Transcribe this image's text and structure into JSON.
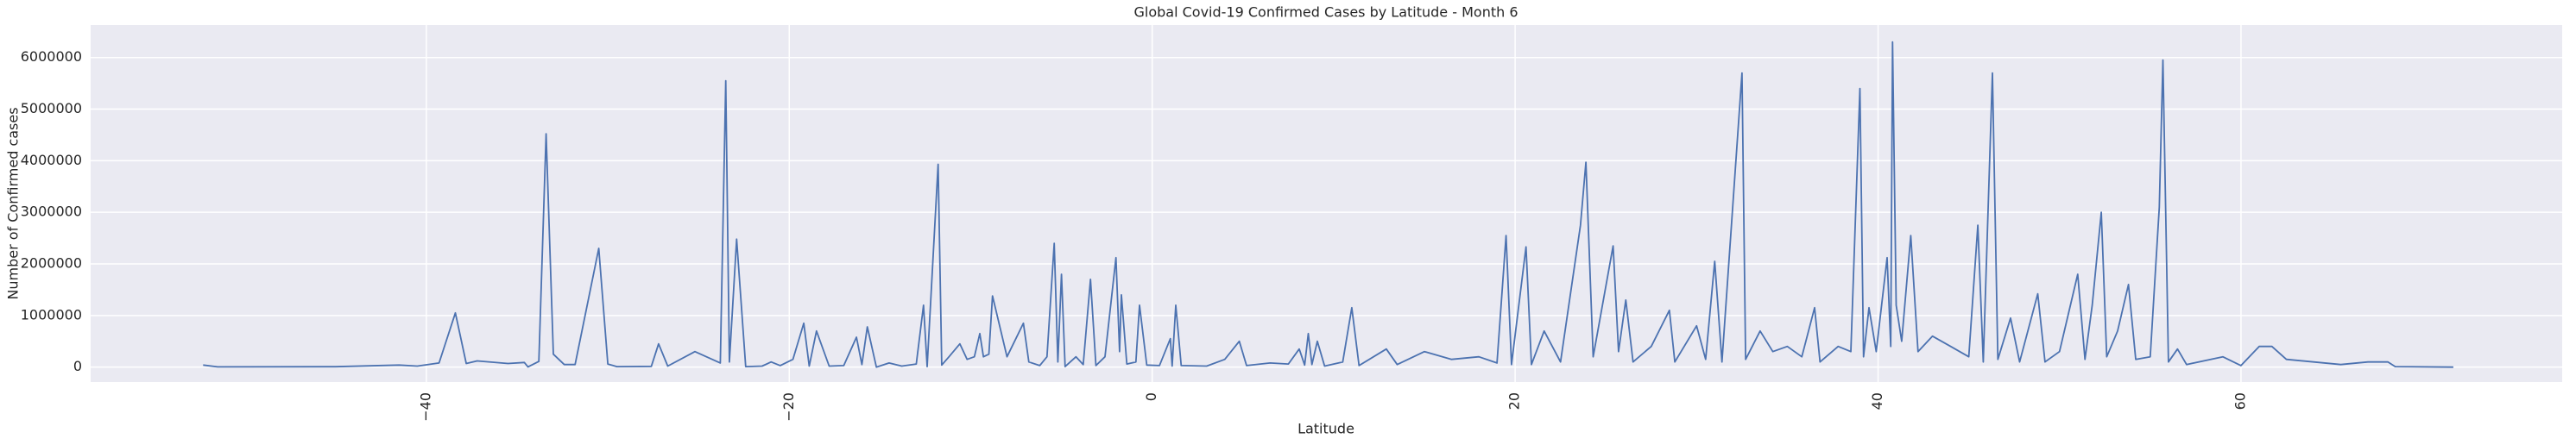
{
  "chart_data": {
    "type": "line",
    "title": "Global Covid-19 Confirmed Cases by Latitude - Month 6",
    "xlabel": "Latitude",
    "ylabel": "Number of Confirmed cases",
    "color": "#4c72b0",
    "grid": true,
    "xlim": [
      -58.5,
      77.7
    ],
    "ylim": [
      -290000,
      6630000
    ],
    "xticks": [
      {
        "value": -40,
        "label": "−40"
      },
      {
        "value": -20,
        "label": "−20"
      },
      0,
      20,
      40,
      60
    ],
    "yticks": [
      0,
      1000000,
      2000000,
      3000000,
      4000000,
      5000000,
      6000000
    ],
    "x": [
      -52.3,
      -51.5,
      -45,
      -41.5,
      -40.5,
      -39.3,
      -38.4,
      -37.8,
      -37.2,
      -35.5,
      -34.6,
      -34.4,
      -33.8,
      -33.4,
      -33.0,
      -32.4,
      -31.8,
      -30.5,
      -30.0,
      -29.5,
      -27.6,
      -27.2,
      -26.7,
      -25.2,
      -23.8,
      -23.5,
      -23.3,
      -22.9,
      -22.4,
      -21.5,
      -21.0,
      -20.5,
      -19.8,
      -19.2,
      -18.9,
      -18.5,
      -17.8,
      -17.0,
      -16.3,
      -16.0,
      -15.7,
      -15.2,
      -14.5,
      -13.8,
      -13.0,
      -12.6,
      -12.4,
      -11.8,
      -11.6,
      -11.2,
      -10.6,
      -10.2,
      -9.8,
      -9.5,
      -9.3,
      -9.0,
      -8.8,
      -8.0,
      -7.1,
      -6.8,
      -6.2,
      -5.8,
      -5.4,
      -5.2,
      -5.0,
      -4.8,
      -4.2,
      -3.8,
      -3.4,
      -3.1,
      -2.6,
      -2.0,
      -1.8,
      -1.7,
      -1.4,
      -0.9,
      -0.7,
      -0.3,
      0.4,
      1.0,
      1.1,
      1.3,
      1.6,
      3.0,
      4.0,
      4.8,
      5.2,
      6.5,
      7.5,
      8.1,
      8.4,
      8.6,
      8.8,
      9.1,
      9.5,
      10.5,
      11.0,
      11.4,
      12.9,
      13.5,
      15.0,
      16.5,
      18.0,
      19.0,
      19.5,
      19.8,
      20.6,
      20.9,
      21.6,
      22.5,
      23.6,
      23.9,
      24.3,
      25.4,
      25.7,
      26.1,
      26.5,
      27.5,
      28.5,
      28.8,
      30.0,
      30.5,
      31.0,
      31.4,
      32.5,
      32.7,
      33.5,
      34.2,
      35.0,
      35.8,
      36.5,
      36.8,
      37.8,
      38.5,
      39.0,
      39.2,
      39.5,
      39.9,
      40.5,
      40.7,
      40.8,
      41.0,
      41.3,
      41.8,
      42.2,
      43.0,
      44.0,
      45.0,
      45.5,
      45.8,
      46.3,
      46.6,
      47.3,
      47.8,
      48.8,
      49.2,
      50.0,
      51.0,
      51.4,
      51.8,
      52.3,
      52.6,
      53.2,
      53.8,
      54.2,
      55.0,
      55.5,
      55.7,
      56.0,
      56.5,
      57.0,
      59.0,
      60.0,
      61.0,
      61.7,
      62.5,
      64.0,
      65.5,
      67.0,
      68.1,
      68.5,
      71.7
    ],
    "values": [
      40000,
      5000,
      8000,
      40000,
      20000,
      80000,
      1050000,
      70000,
      120000,
      70000,
      90000,
      5000,
      110000,
      4520000,
      250000,
      50000,
      50000,
      2300000,
      60000,
      10000,
      15000,
      450000,
      20000,
      300000,
      80000,
      5550000,
      100000,
      2480000,
      10000,
      20000,
      100000,
      30000,
      150000,
      850000,
      20000,
      700000,
      20000,
      30000,
      580000,
      50000,
      780000,
      0,
      80000,
      20000,
      60000,
      1200000,
      10000,
      3930000,
      40000,
      200000,
      450000,
      150000,
      200000,
      650000,
      200000,
      250000,
      1380000,
      200000,
      850000,
      100000,
      30000,
      200000,
      2400000,
      100000,
      1800000,
      10000,
      200000,
      50000,
      1700000,
      30000,
      200000,
      2120000,
      300000,
      1400000,
      60000,
      100000,
      1200000,
      40000,
      30000,
      550000,
      20000,
      1200000,
      30000,
      20000,
      150000,
      500000,
      30000,
      80000,
      60000,
      350000,
      40000,
      650000,
      50000,
      500000,
      20000,
      100000,
      1150000,
      30000,
      350000,
      50000,
      300000,
      150000,
      200000,
      80000,
      2550000,
      50000,
      2330000,
      50000,
      700000,
      100000,
      2750000,
      3970000,
      200000,
      2350000,
      300000,
      1300000,
      100000,
      400000,
      1100000,
      100000,
      800000,
      150000,
      2050000,
      100000,
      5700000,
      150000,
      700000,
      300000,
      400000,
      200000,
      1150000,
      100000,
      400000,
      300000,
      5400000,
      200000,
      1150000,
      300000,
      2120000,
      400000,
      6300000,
      1200000,
      500000,
      2550000,
      300000,
      600000,
      400000,
      200000,
      2750000,
      100000,
      5700000,
      150000,
      950000,
      100000,
      1420000,
      100000,
      300000,
      1800000,
      150000,
      1200000,
      3000000,
      200000,
      700000,
      1600000,
      150000,
      200000,
      3100000,
      5950000,
      100000,
      350000,
      50000,
      200000,
      30000,
      400000,
      400000,
      150000,
      100000,
      50000,
      100000,
      100000,
      10000,
      0
    ]
  }
}
